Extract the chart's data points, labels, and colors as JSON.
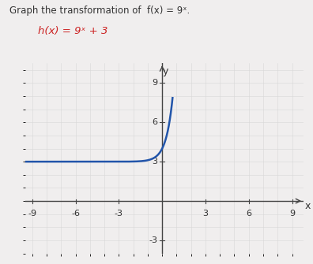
{
  "title_line1": "Graph the transformation of  f(x) = 9ˣ.",
  "title_line2": "h(x) = 9ˣ + 3",
  "xlabel": "x",
  "ylabel": "y",
  "xlim": [
    -9.5,
    9.8
  ],
  "ylim": [
    -4.0,
    10.5
  ],
  "xticks": [
    -9,
    -6,
    -3,
    3,
    6,
    9
  ],
  "yticks": [
    -3,
    3,
    6,
    9
  ],
  "grid_minor_color": "#d8d8d8",
  "grid_major_color": "#bbbbbb",
  "curve_color": "#2255aa",
  "curve_linewidth": 1.8,
  "axis_color": "#444444",
  "background_color": "#f0eeee",
  "plot_bg_color": "#f0eeee",
  "text_color": "#333333",
  "title_fontsize": 8.5,
  "subtitle_fontsize": 9.5,
  "tick_fontsize": 8,
  "axis_linewidth": 1.0
}
